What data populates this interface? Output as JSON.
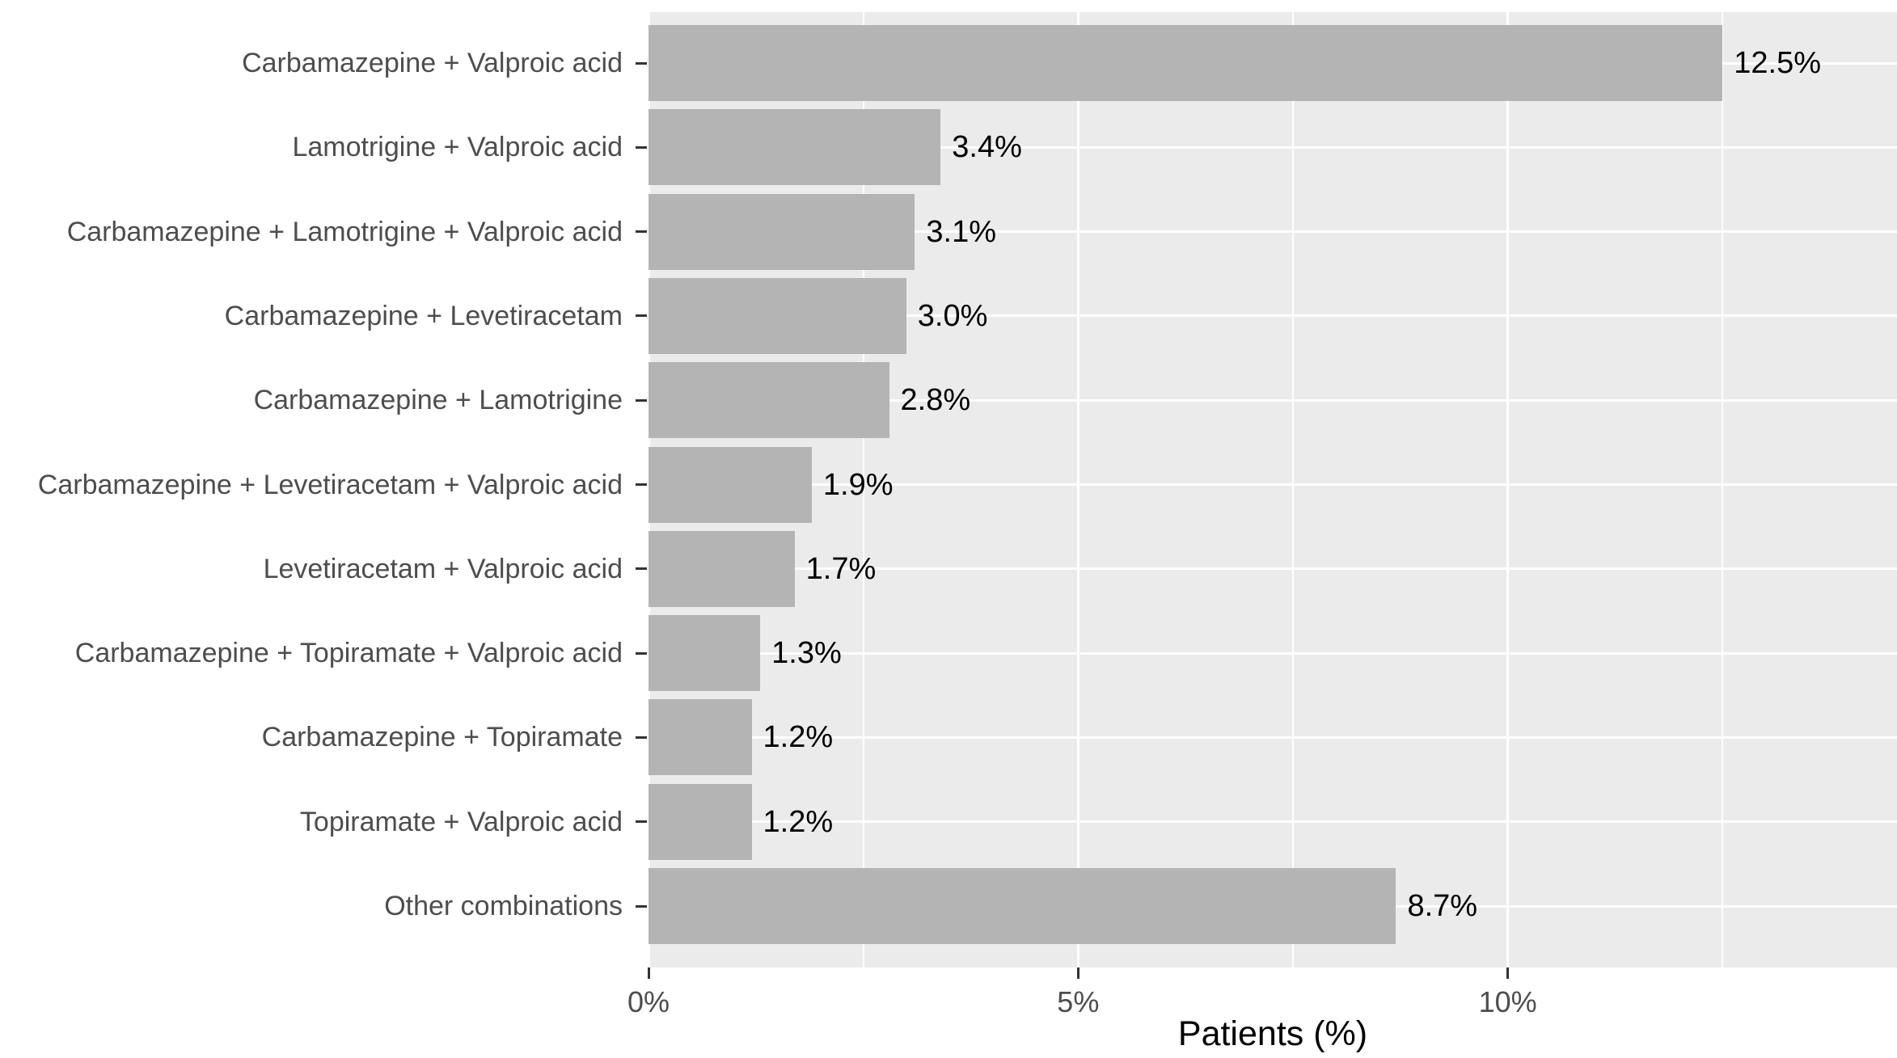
{
  "chart_data": {
    "type": "bar",
    "orientation": "horizontal",
    "title": "",
    "xlabel": "Patients (%)",
    "ylabel": "",
    "categories": [
      "Carbamazepine + Valproic acid",
      "Lamotrigine + Valproic acid",
      "Carbamazepine + Lamotrigine + Valproic acid",
      "Carbamazepine + Levetiracetam",
      "Carbamazepine + Lamotrigine",
      "Carbamazepine + Levetiracetam + Valproic acid",
      "Levetiracetam + Valproic acid",
      "Carbamazepine + Topiramate + Valproic acid",
      "Carbamazepine + Topiramate",
      "Topiramate + Valproic acid",
      "Other combinations"
    ],
    "values": [
      12.5,
      3.4,
      3.1,
      3.0,
      2.8,
      1.9,
      1.7,
      1.3,
      1.2,
      1.2,
      8.7
    ],
    "bar_labels": [
      "12.5%",
      "3.4%",
      "3.1%",
      "3.0%",
      "2.8%",
      "1.9%",
      "1.7%",
      "1.3%",
      "1.2%",
      "1.2%",
      "8.7%"
    ],
    "x_ticks": [
      {
        "value": 0,
        "label": "0%"
      },
      {
        "value": 5,
        "label": "5%"
      },
      {
        "value": 10,
        "label": "10%"
      }
    ],
    "x_minor_ticks": [
      2.5,
      7.5,
      12.5
    ],
    "xlim": [
      0,
      14.53
    ],
    "grid": true,
    "legend": "none",
    "colors": {
      "bar": "#b4b4b4",
      "panel_background": "#ebebeb",
      "gridline": "#ffffff",
      "axis_text": "#4d4d4d",
      "value_label": "#000000",
      "tick_mark": "#333333",
      "background": "#ffffff"
    }
  }
}
